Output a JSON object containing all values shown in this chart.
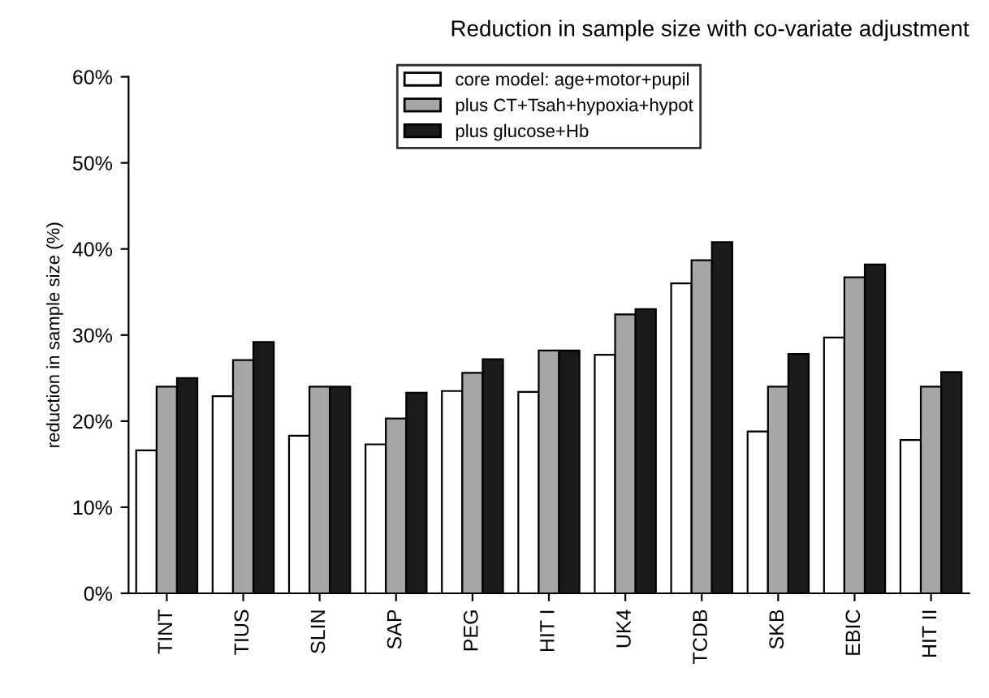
{
  "chart_data": {
    "type": "bar",
    "title": "Reduction in sample size with co-variate adjustment",
    "ylabel": "reduction in sample size (%)",
    "categories": [
      "TINT",
      "TIUS",
      "SLIN",
      "SAP",
      "PEG",
      "HIT I",
      "UK4",
      "TCDB",
      "SKB",
      "EBIC",
      "HIT II"
    ],
    "series": [
      {
        "name": "core model: age+motor+pupil",
        "color": "#ffffff",
        "values": [
          16.6,
          22.9,
          18.3,
          17.3,
          23.5,
          23.4,
          27.7,
          36.0,
          18.8,
          29.7,
          17.8
        ]
      },
      {
        "name": "plus CT+Tsah+hypoxia+hypot",
        "color": "#a6a6a6",
        "values": [
          24.0,
          27.1,
          24.0,
          20.3,
          25.6,
          28.2,
          32.4,
          38.7,
          24.0,
          36.7,
          24.0
        ]
      },
      {
        "name": "plus glucose+Hb",
        "color": "#1a1a1a",
        "values": [
          25.0,
          29.2,
          24.0,
          23.3,
          27.2,
          28.2,
          33.0,
          40.8,
          27.8,
          38.2,
          25.7
        ]
      }
    ],
    "ylim": [
      0,
      60
    ],
    "yticks": [
      {
        "value": 0,
        "label": "0%"
      },
      {
        "value": 10,
        "label": "10%"
      },
      {
        "value": 20,
        "label": "20%"
      },
      {
        "value": 30,
        "label": "30%"
      },
      {
        "value": 40,
        "label": "40%"
      },
      {
        "value": 50,
        "label": "50%"
      },
      {
        "value": 60,
        "label": "60%"
      }
    ],
    "grid": false,
    "legend": "top"
  }
}
